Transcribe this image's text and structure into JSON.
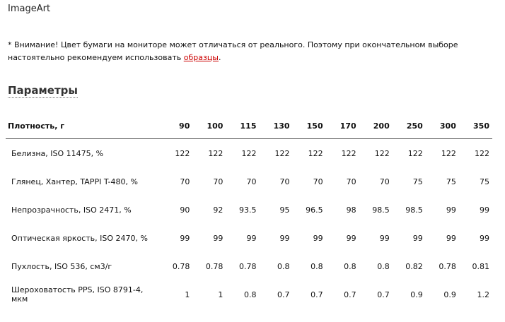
{
  "brand": "ImageArt",
  "notice": {
    "text": "* Внимание! Цвет бумаги на мониторе может отличаться от реального. Поэтому при окончательном выборе настоятельно рекомендуем использовать ",
    "link": "образцы",
    "end": "."
  },
  "section_title": "Параметры",
  "table": {
    "header_label": "Плотность, г",
    "columns": [
      "90",
      "100",
      "115",
      "130",
      "150",
      "170",
      "200",
      "250",
      "300",
      "350"
    ],
    "rows": [
      {
        "label": "Белизна, ISO 11475, %",
        "values": [
          "122",
          "122",
          "122",
          "122",
          "122",
          "122",
          "122",
          "122",
          "122",
          "122"
        ]
      },
      {
        "label": "Глянец, Хантер, TAPPI T-480, %",
        "values": [
          "70",
          "70",
          "70",
          "70",
          "70",
          "70",
          "70",
          "75",
          "75",
          "75"
        ]
      },
      {
        "label": "Непрозрачность, ISO 2471, %",
        "values": [
          "90",
          "92",
          "93.5",
          "95",
          "96.5",
          "98",
          "98.5",
          "98.5",
          "99",
          "99"
        ]
      },
      {
        "label": "Оптическая яркость, ISO 2470, %",
        "values": [
          "99",
          "99",
          "99",
          "99",
          "99",
          "99",
          "99",
          "99",
          "99",
          "99"
        ]
      },
      {
        "label": "Пухлость, ISO 536, см3/г",
        "values": [
          "0.78",
          "0.78",
          "0.78",
          "0.8",
          "0.8",
          "0.8",
          "0.8",
          "0.82",
          "0.78",
          "0.81"
        ]
      },
      {
        "label": "Шероховатость PPS, ISO 8791-4, мкм",
        "values": [
          "1",
          "1",
          "0.8",
          "0.7",
          "0.7",
          "0.7",
          "0.7",
          "0.9",
          "0.9",
          "1.2"
        ]
      }
    ]
  }
}
